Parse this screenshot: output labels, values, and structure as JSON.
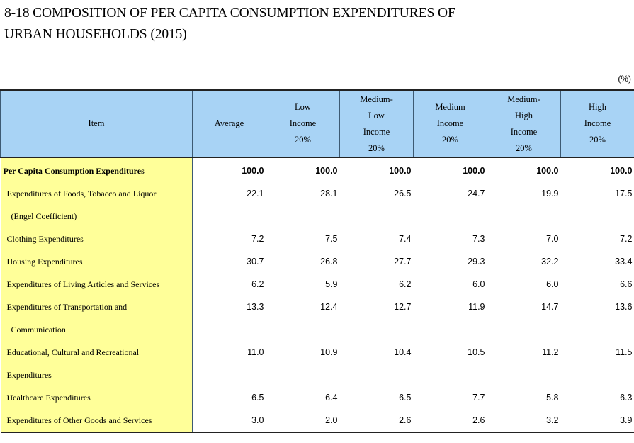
{
  "title": {
    "line1": "8-18  COMPOSITION OF PER CAPITA CONSUMPTION EXPENDITURES OF",
    "line2": "URBAN HOUSEHOLDS (2015)"
  },
  "unit": "(%)",
  "headers": {
    "item": "Item",
    "average": "Average",
    "low": [
      "Low",
      "Income",
      "20%"
    ],
    "medium_low": [
      "Medium-",
      "Low",
      "Income",
      "20%"
    ],
    "medium": [
      "Medium",
      "Income",
      "20%"
    ],
    "medium_high": [
      "Medium-",
      "High",
      "Income",
      "20%"
    ],
    "high": [
      "High",
      "Income",
      "20%"
    ]
  },
  "rows": [
    {
      "label": "Per Capita Consumption Expenditures",
      "cont": "",
      "values": [
        "100.0",
        "100.0",
        "100.0",
        "100.0",
        "100.0",
        "100.0"
      ]
    },
    {
      "label": "Expenditures of Foods, Tobacco and Liquor",
      "cont": "(Engel Coefficient)",
      "values": [
        "22.1",
        "28.1",
        "26.5",
        "24.7",
        "19.9",
        "17.5"
      ]
    },
    {
      "label": "Clothing Expenditures",
      "cont": "",
      "values": [
        "7.2",
        "7.5",
        "7.4",
        "7.3",
        "7.0",
        "7.2"
      ]
    },
    {
      "label": "Housing Expenditures",
      "cont": "",
      "values": [
        "30.7",
        "26.8",
        "27.7",
        "29.3",
        "32.2",
        "33.4"
      ]
    },
    {
      "label": "Expenditures of Living Articles and Services",
      "cont": "",
      "values": [
        "6.2",
        "5.9",
        "6.2",
        "6.0",
        "6.0",
        "6.6"
      ]
    },
    {
      "label": "Expenditures of Transportation and",
      "cont": "Communication",
      "values": [
        "13.3",
        "12.4",
        "12.7",
        "11.9",
        "14.7",
        "13.6"
      ]
    },
    {
      "label": "Educational, Cultural and Recreational",
      "cont": "Expenditures",
      "values": [
        "11.0",
        "10.9",
        "10.4",
        "10.5",
        "11.2",
        "11.5"
      ]
    },
    {
      "label": "Healthcare Expenditures",
      "cont": "",
      "values": [
        "6.5",
        "6.4",
        "6.5",
        "7.7",
        "5.8",
        "6.3"
      ]
    },
    {
      "label": "Expenditures of Other Goods and Services",
      "cont": "",
      "values": [
        "3.0",
        "2.0",
        "2.6",
        "2.6",
        "3.2",
        "3.9"
      ]
    }
  ]
}
